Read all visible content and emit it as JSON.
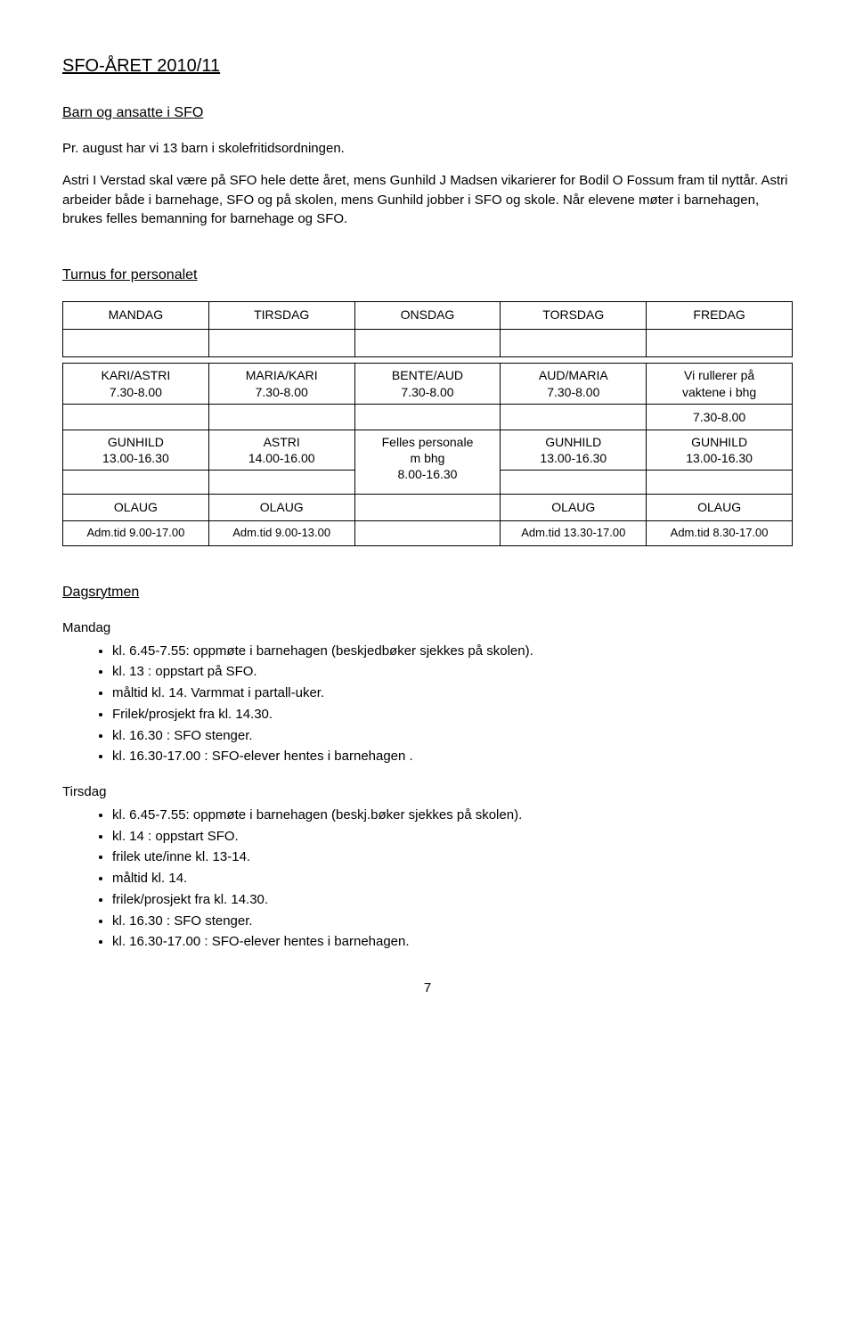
{
  "title": "SFO-ÅRET 2010/11",
  "subheading1": "Barn og ansatte i SFO",
  "intro1": "Pr. august har vi 13 barn i skolefritidsordningen.",
  "intro2": "Astri I Verstad skal være på SFO hele dette året, mens Gunhild J Madsen vikarierer for Bodil O Fossum fram til nyttår. Astri arbeider både i barnehage, SFO og på skolen, mens Gunhild  jobber i SFO og skole. Når elevene møter i barnehagen, brukes felles bemanning for barnehage og SFO.",
  "turnusHeading": "Turnus for personalet",
  "days": [
    "MANDAG",
    "TIRSDAG",
    "ONSDAG",
    "TORSDAG",
    "FREDAG"
  ],
  "row1": {
    "c1a": "KARI/ASTRI",
    "c1b": "7.30-8.00",
    "c2a": "MARIA/KARI",
    "c2b": "7.30-8.00",
    "c3a": "BENTE/AUD",
    "c3b": "7.30-8.00",
    "c4a": "AUD/MARIA",
    "c4b": "7.30-8.00",
    "c5a": "Vi rullerer på",
    "c5b": "vaktene i bhg"
  },
  "row1extra": "7.30-8.00",
  "row2": {
    "c1a": "GUNHILD",
    "c1b": "13.00-16.30",
    "c2a": "ASTRI",
    "c2b": "14.00-16.00",
    "c3a": "Felles personale",
    "c3b": "m bhg",
    "c3c": "8.00-16.30",
    "c4a": "GUNHILD",
    "c4b": "13.00-16.30",
    "c5a": "GUNHILD",
    "c5b": "13.00-16.30"
  },
  "row3": {
    "c1a": "OLAUG",
    "c1b": "Adm.tid 9.00-17.00",
    "c2a": "OLAUG",
    "c2b": "Adm.tid  9.00-13.00",
    "c4a": "OLAUG",
    "c4b": "Adm.tid 13.30-17.00",
    "c5a": "OLAUG",
    "c5b": "Adm.tid  8.30-17.00"
  },
  "dagsrytmenHeading": "Dagsrytmen",
  "mandag": {
    "title": "Mandag",
    "items": [
      "kl. 6.45-7.55: oppmøte i barnehagen (beskjedbøker sjekkes på skolen).",
      "kl. 13 : oppstart på SFO.",
      "måltid kl. 14. Varmmat i partall-uker.",
      "Frilek/prosjekt fra kl. 14.30.",
      "kl. 16.30 : SFO stenger.",
      "kl. 16.30-17.00 : SFO-elever hentes i barnehagen ."
    ]
  },
  "tirsdag": {
    "title": "Tirsdag",
    "items": [
      "kl. 6.45-7.55: oppmøte i barnehagen (beskj.bøker sjekkes på skolen).",
      "kl. 14 : oppstart SFO.",
      "frilek ute/inne kl. 13-14.",
      "måltid kl. 14.",
      "frilek/prosjekt fra kl. 14.30.",
      "kl. 16.30 : SFO stenger.",
      "kl. 16.30-17.00 : SFO-elever hentes i barnehagen."
    ]
  },
  "pageNumber": "7"
}
